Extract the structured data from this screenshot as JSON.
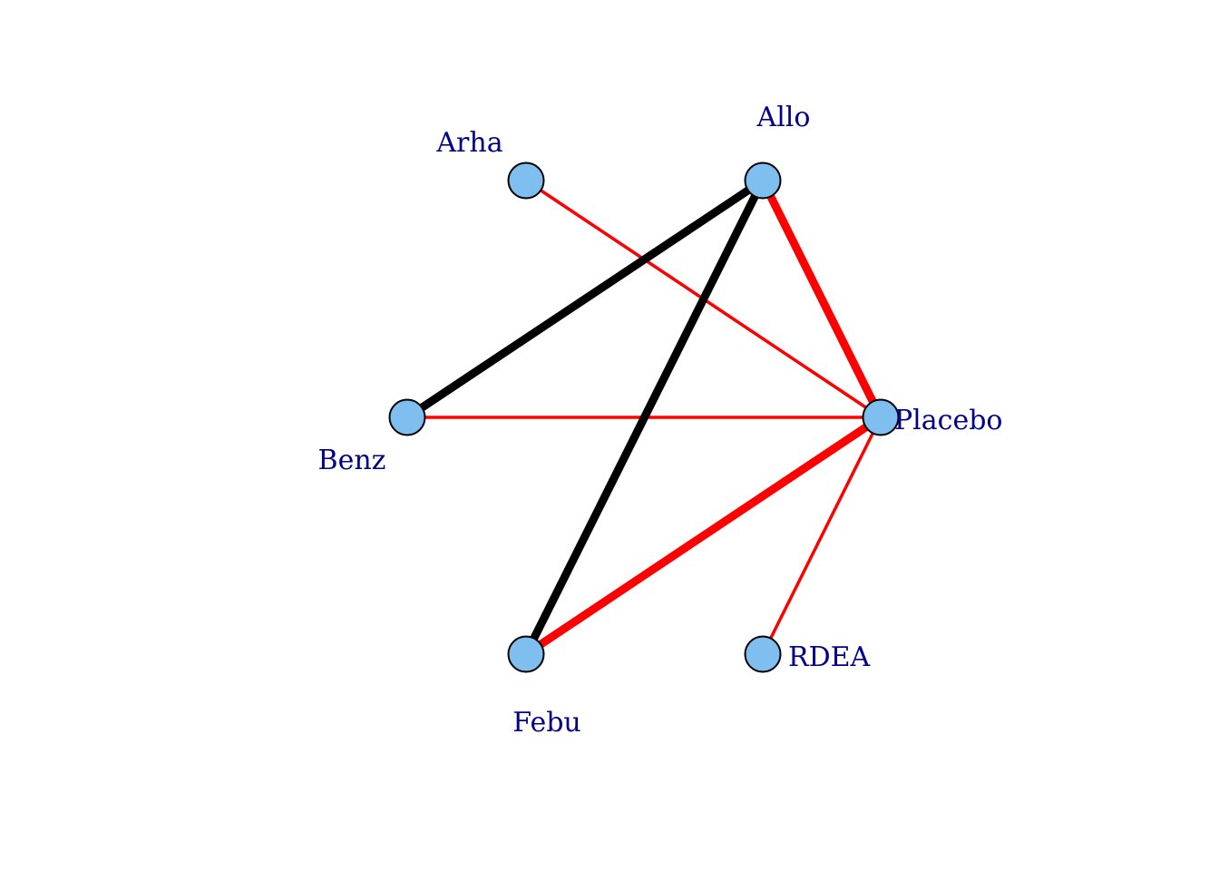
{
  "colors": {
    "node_fill": "#7fbfef",
    "label": "#00008b",
    "edge_red": "#ff0000",
    "edge_black": "#000000"
  },
  "nodes": [
    {
      "id": "allo",
      "label": "Allo"
    },
    {
      "id": "arha",
      "label": "Arha"
    },
    {
      "id": "benz",
      "label": "Benz"
    },
    {
      "id": "febu",
      "label": "Febu"
    },
    {
      "id": "rdea",
      "label": "RDEA"
    },
    {
      "id": "placebo",
      "label": "Placebo"
    }
  ],
  "edges": [
    {
      "from": "arha",
      "to": "placebo",
      "color": "red",
      "weight": "thin"
    },
    {
      "from": "benz",
      "to": "placebo",
      "color": "red",
      "weight": "thin"
    },
    {
      "from": "rdea",
      "to": "placebo",
      "color": "red",
      "weight": "thin"
    },
    {
      "from": "allo",
      "to": "placebo",
      "color": "red",
      "weight": "thick"
    },
    {
      "from": "febu",
      "to": "placebo",
      "color": "red",
      "weight": "thick"
    },
    {
      "from": "allo",
      "to": "benz",
      "color": "black",
      "weight": "thick"
    },
    {
      "from": "allo",
      "to": "febu",
      "color": "black",
      "weight": "thick"
    }
  ]
}
